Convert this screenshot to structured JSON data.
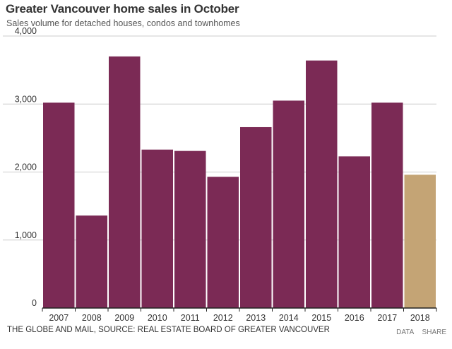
{
  "chart_data": {
    "type": "bar",
    "title": "Greater Vancouver home sales in October",
    "subtitle": "Sales volume for detached houses, condos and townhomes",
    "categories": [
      "2007",
      "2008",
      "2009",
      "2010",
      "2011",
      "2012",
      "2013",
      "2014",
      "2015",
      "2016",
      "2017",
      "2018"
    ],
    "values": [
      3020,
      1360,
      3700,
      2330,
      2310,
      1930,
      2660,
      3050,
      3640,
      2230,
      3020,
      1960
    ],
    "ylim": [
      0,
      4000
    ],
    "yticks": [
      0,
      1000,
      2000,
      3000,
      4000
    ],
    "ytick_labels": [
      "0",
      "1,000",
      "2,000",
      "3,000",
      "4,000"
    ],
    "grid": true,
    "colors": {
      "bar": "#7b2a55",
      "highlight": "#c4a475",
      "highlight_index": 11,
      "grid": "#cccccc",
      "axis": "#222222"
    }
  },
  "footer": {
    "source": "THE GLOBE AND MAIL, SOURCE: REAL ESTATE BOARD OF GREATER VANCOUVER",
    "data_link": "DATA",
    "share_link": "SHARE"
  }
}
